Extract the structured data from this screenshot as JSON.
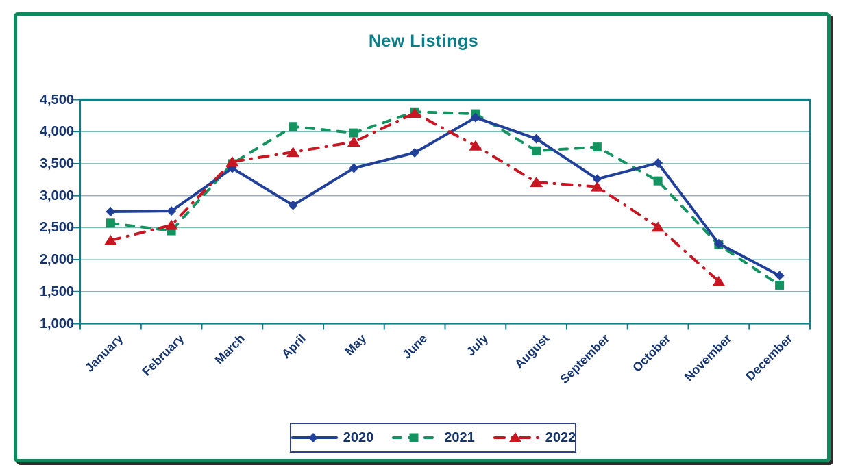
{
  "chart_data": {
    "type": "line",
    "title": "New Listings",
    "categories": [
      "January",
      "February",
      "March",
      "April",
      "May",
      "June",
      "July",
      "August",
      "September",
      "October",
      "November",
      "December"
    ],
    "series": [
      {
        "name": "2020",
        "color": "#21409A",
        "marker": "diamond",
        "line_style": "solid",
        "values": [
          2750,
          2760,
          3430,
          2850,
          3430,
          3670,
          4220,
          3890,
          3260,
          3510,
          2250,
          1750
        ]
      },
      {
        "name": "2021",
        "color": "#12935F",
        "marker": "square",
        "line_style": "dashed",
        "values": [
          2570,
          2450,
          3500,
          4080,
          3980,
          4310,
          4280,
          3700,
          3760,
          3230,
          2230,
          1600
        ]
      },
      {
        "name": "2022",
        "color": "#C81622",
        "marker": "triangle",
        "line_style": "dash-dot",
        "values": [
          2300,
          2540,
          3530,
          3680,
          3840,
          4290,
          3780,
          3210,
          3140,
          2510,
          1660,
          null
        ]
      }
    ],
    "xlabel": "",
    "ylabel": "",
    "ylim": [
      1000,
      4500
    ],
    "ytick_step": 500,
    "ytick_labels": [
      "1,000",
      "1,500",
      "2,000",
      "2,500",
      "3,000",
      "3,500",
      "4,000",
      "4,500"
    ],
    "grid": true,
    "legend_position": "bottom"
  },
  "colors": {
    "frame_border": "#0E8A5E",
    "frame_shadow": "#2E2E2E",
    "title": "#0C7C86",
    "axis": "#117E89",
    "grid": "#79BCB6",
    "tick_label": "#16356E",
    "legend_border": "#2F3F8F",
    "background": "#FFFFFF"
  }
}
